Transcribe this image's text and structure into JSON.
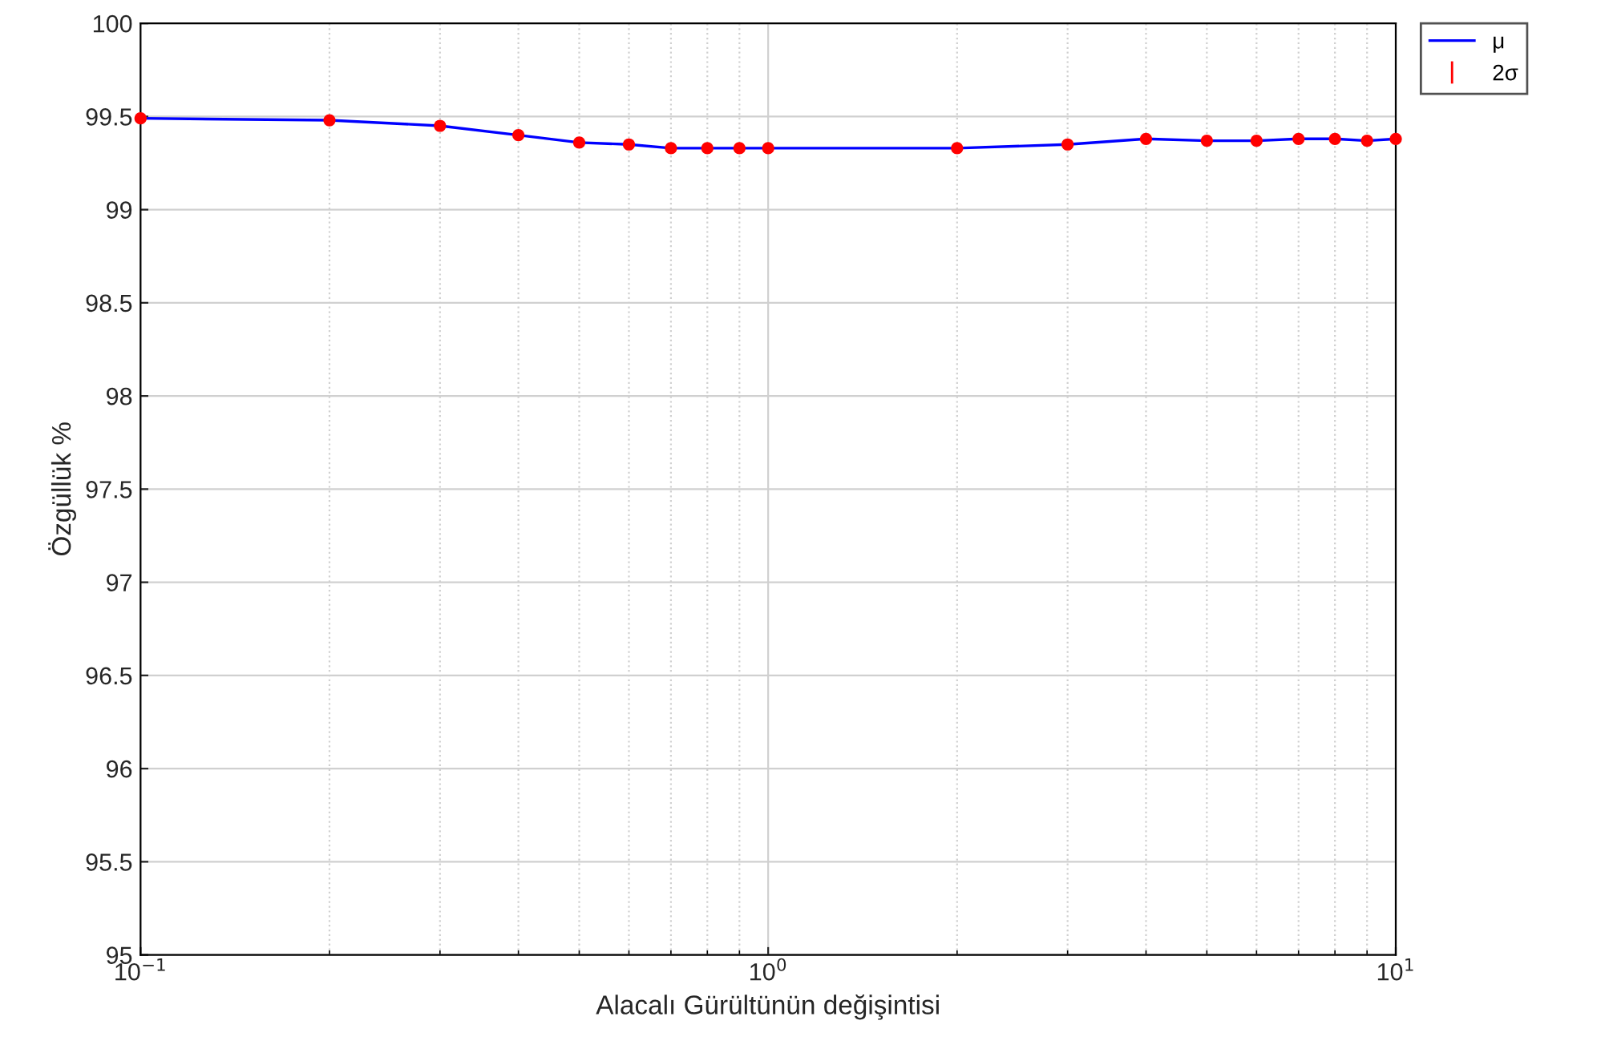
{
  "chart_data": {
    "type": "line",
    "xlabel": "Alacalı Gürültünün değişintisi",
    "ylabel": "Özgüllük %",
    "log": "x",
    "x": [
      0.1,
      0.2,
      0.3,
      0.4,
      0.5,
      0.6,
      0.7,
      0.8,
      0.9,
      1,
      2,
      3,
      4,
      5,
      6,
      7,
      8,
      9,
      10
    ],
    "series": [
      {
        "name": "μ",
        "color": "#0000ff",
        "values": [
          99.49,
          99.48,
          99.45,
          99.4,
          99.36,
          99.35,
          99.33,
          99.33,
          99.33,
          99.33,
          99.33,
          99.35,
          99.38,
          99.37,
          99.37,
          99.38,
          99.38,
          99.37,
          99.38
        ]
      },
      {
        "name": "2σ",
        "type": "scatter",
        "color": "#ff0000",
        "values": [
          99.49,
          99.48,
          99.45,
          99.4,
          99.36,
          99.35,
          99.33,
          99.33,
          99.33,
          99.33,
          99.33,
          99.35,
          99.38,
          99.37,
          99.37,
          99.38,
          99.38,
          99.37,
          99.38
        ],
        "errors": [
          0.005,
          0.005,
          0.005,
          0.005,
          0.005,
          0.005,
          0.005,
          0.005,
          0.005,
          0.005,
          0.005,
          0.005,
          0.005,
          0.01,
          0.01,
          0.005,
          0.005,
          0.01,
          0.005
        ]
      }
    ],
    "xlim": [
      0.1,
      10
    ],
    "ylim": [
      95,
      100
    ],
    "xticks": [
      {
        "value": 0.1,
        "label": "10$^{−1}$"
      },
      {
        "value": 1,
        "label": "10$^{0}$"
      },
      {
        "value": 10,
        "label": "10$^{1}$"
      }
    ],
    "yticks": [
      95,
      95.5,
      96,
      96.5,
      97,
      97.5,
      98,
      98.5,
      99,
      99.5,
      100
    ],
    "grid": true,
    "legend": "top right"
  }
}
